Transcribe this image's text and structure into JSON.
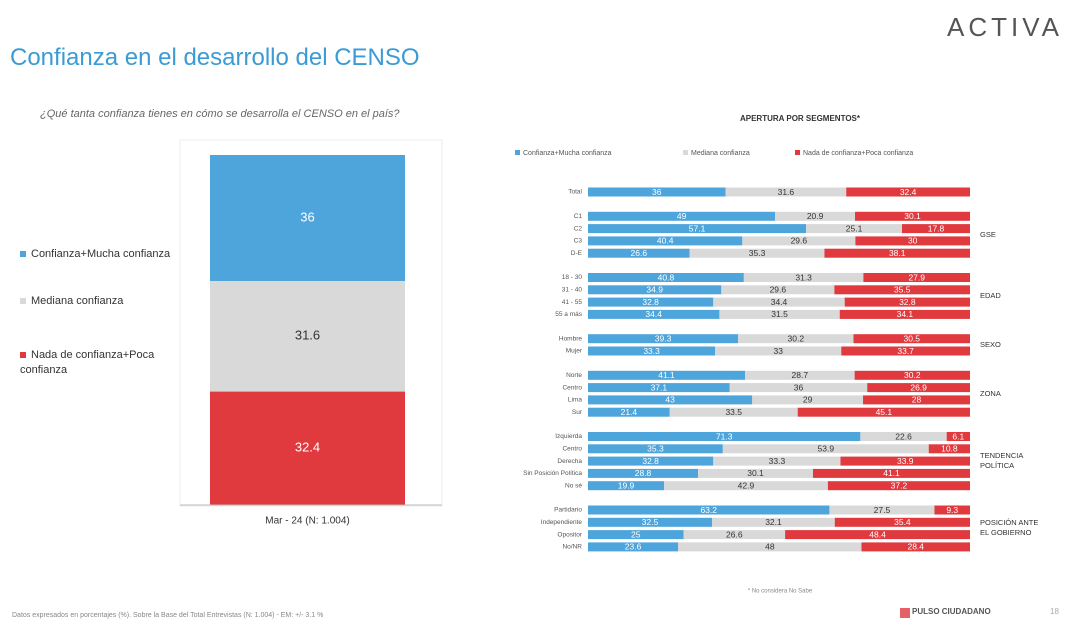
{
  "header": {
    "brand": "ACTIVA",
    "title": "Confianza en el desarrollo del CENSO",
    "question": "¿Qué tanta confianza tienes en cómo se desarrolla el CENSO en el país?"
  },
  "chart_data": [
    {
      "type": "stacked_bar",
      "categories": [
        "Mar - 24 (N: 1.004)"
      ],
      "ylim": [
        0,
        100
      ],
      "series": [
        {
          "name": "Confianza+Mucha confianza",
          "color": "#4ea5dc",
          "values": [
            36
          ]
        },
        {
          "name": "Mediana confianza",
          "color": "#d9d9d9",
          "values": [
            31.6
          ]
        },
        {
          "name": "Nada de confianza+Poca confianza",
          "color": "#e0393e",
          "values": [
            32.4
          ]
        }
      ]
    },
    {
      "type": "stacked_barh",
      "title": "APERTURA POR SEGMENTOS*",
      "note": "* No considera No Sabe",
      "xlim": [
        0,
        100
      ],
      "categories": [
        "Total",
        "C1",
        "C2",
        "C3",
        "D-E",
        "18 - 30",
        "31 - 40",
        "41 - 55",
        "55 a más",
        "Hombre",
        "Mujer",
        "Norte",
        "Centro",
        "Lima",
        "Sur",
        "Izquierda",
        "Centro",
        "Derecha",
        "Sin Posición Política",
        "No sé",
        "Partidario",
        "Independiente",
        "Opositor",
        "No/NR"
      ],
      "groups": [
        {
          "label": "GSE",
          "categories": [
            "C1",
            "C2",
            "C3",
            "D-E"
          ]
        },
        {
          "label": "EDAD",
          "categories": [
            "18 - 30",
            "31 - 40",
            "41 - 55",
            "55 a más"
          ]
        },
        {
          "label": "SEXO",
          "categories": [
            "Hombre",
            "Mujer"
          ]
        },
        {
          "label": "ZONA",
          "categories": [
            "Norte",
            "Centro",
            "Lima",
            "Sur"
          ]
        },
        {
          "label": "TENDENCIA POLÍTICA",
          "categories": [
            "Izquierda",
            "Centro",
            "Derecha",
            "Sin Posición Política",
            "No sé"
          ]
        },
        {
          "label": "POSICIÓN ANTE EL GOBIERNO",
          "categories": [
            "Partidario",
            "Independiente",
            "Opositor",
            "No/NR"
          ]
        }
      ],
      "series": [
        {
          "name": "Confianza+Mucha confianza",
          "color": "#4ea5dc",
          "values": [
            36,
            49,
            57.1,
            40.4,
            26.6,
            40.8,
            34.9,
            32.8,
            34.4,
            39.3,
            33.3,
            41.1,
            37.1,
            43,
            21.4,
            71.3,
            35.3,
            32.8,
            28.8,
            19.9,
            63.2,
            32.5,
            25,
            23.6
          ]
        },
        {
          "name": "Mediana confianza",
          "color": "#d9d9d9",
          "values": [
            31.6,
            20.9,
            25.1,
            29.6,
            35.3,
            31.3,
            29.6,
            34.4,
            31.5,
            30.2,
            33,
            28.7,
            36,
            29,
            33.5,
            22.6,
            53.9,
            33.3,
            30.1,
            42.9,
            27.5,
            32.1,
            26.6,
            48
          ]
        },
        {
          "name": "Nada de confianza+Poca confianza",
          "color": "#e0393e",
          "values": [
            32.4,
            30.1,
            17.8,
            30,
            38.1,
            27.9,
            35.5,
            32.8,
            34.1,
            30.5,
            33.7,
            30.2,
            26.9,
            28,
            45.1,
            6.1,
            10.8,
            33.9,
            41.1,
            37.2,
            9.3,
            35.4,
            48.4,
            28.4
          ]
        }
      ]
    }
  ],
  "footer": {
    "source": "Datos expresados en porcentajes (%). Sobre la Base del Total Entrevistas (N: 1.004) - EM: +/- 3.1 %",
    "logo": "PULSO CIUDADANO",
    "page": "18"
  }
}
